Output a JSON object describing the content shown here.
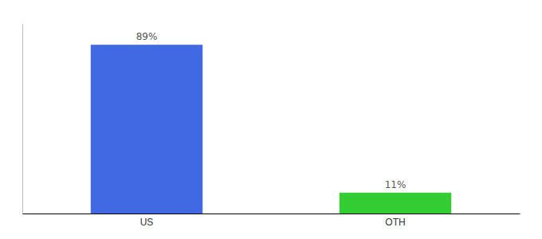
{
  "chart_data": {
    "type": "bar",
    "categories": [
      "US",
      "OTH"
    ],
    "values": [
      89,
      11
    ],
    "value_labels": [
      "89%",
      "11%"
    ],
    "colors": [
      "#4169e1",
      "#33cc33"
    ],
    "ylim": [
      0,
      100
    ],
    "data_labels": true,
    "tick_labels": "x",
    "grid": false
  }
}
